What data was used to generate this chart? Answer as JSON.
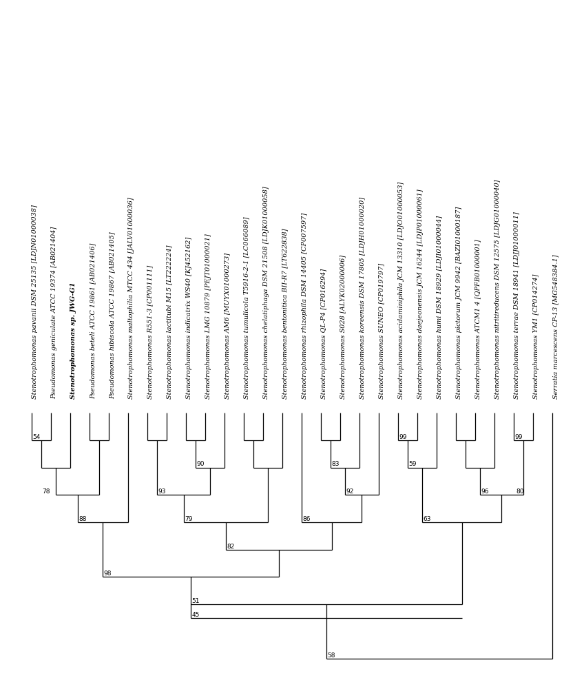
{
  "taxa": [
    {
      "name": "Stenotrophomonas pavanii DSM 25135 [LDJN01000038]",
      "bold": false
    },
    {
      "name": "Pseudomonas geniculate ATCC 19374 [AB021404]",
      "bold": false
    },
    {
      "name": "Stenotrophomonas sp. JWG-G1",
      "bold": true
    },
    {
      "name": "Pseudomonas beteli ATCC 19861 [AB021406]",
      "bold": false
    },
    {
      "name": "Pseudomonas hibiscola ATCC 19867 [AB021405]",
      "bold": false
    },
    {
      "name": "Stenotrophomonas maltophilia MTCC 434 [JALV01000036]",
      "bold": false
    },
    {
      "name": "Stenotrophomonas R551-3 [CP001111]",
      "bold": false
    },
    {
      "name": "Stenotrophomonas lactitubi M15 [LT222224]",
      "bold": false
    },
    {
      "name": "Stenotrophomonas indicatrix WS40 [KJ452162]",
      "bold": false
    },
    {
      "name": "Stenotrophomonas LMG 10879 [PEJT01000021]",
      "bold": false
    },
    {
      "name": "Stenotrophomonas AM6 [MUYX01000273]",
      "bold": false
    },
    {
      "name": "Stenotrophomonas tumulicola T5916-2-1 [LC066089]",
      "bold": false
    },
    {
      "name": "Stenotrophomonas chelatiphaga DSM 21508 [LDJK01000058]",
      "bold": false
    },
    {
      "name": "Stenotrophomonas bentonitica BII-R7 [LT622838]",
      "bold": false
    },
    {
      "name": "Stenotrophomonas rhizophila DSM 14405 [CP007597]",
      "bold": false
    },
    {
      "name": "Stenotrophomonas QL-P4 [CP016294]",
      "bold": false
    },
    {
      "name": "Stenotrophomonas S028 [ALYK02000006]",
      "bold": false
    },
    {
      "name": "Stenotrophomonas koreensis DSM 17805 [LDJH01000020]",
      "bold": false
    },
    {
      "name": "Stenotrophomonas SUNEO [CP019797]",
      "bold": false
    },
    {
      "name": "Stenotrophomonas acidaminiphila JCM 13310 [LDJO01000053]",
      "bold": false
    },
    {
      "name": "Stenotrophomonas daejeonensis JCM 16244 [LDJP01000061]",
      "bold": false
    },
    {
      "name": "Stenotrophomonas humi DSM 18929 [LDJI01000044]",
      "bold": false
    },
    {
      "name": "Stenotrophomonas pictorum JCM 9942 [BAZI01000187]",
      "bold": false
    },
    {
      "name": "Stenotrophomonas ATCM1 4 [QPFB01000001]",
      "bold": false
    },
    {
      "name": "Stenotrophomonas nitritireducens DSM 12575 [LDJG01000040]",
      "bold": false
    },
    {
      "name": "Stenotrophomonas terrae DSM 18941 [LDJJ01000011]",
      "bold": false
    },
    {
      "name": "Stenotrophomonas YM1 [CP014274]",
      "bold": false
    },
    {
      "name": "Serratia marcescens CP-13 [MG548384.1]",
      "bold": false
    }
  ],
  "bg_color": "#ffffff",
  "line_color": "#000000",
  "label_fontsize": 7.0,
  "bootstrap_fontsize": 6.5
}
